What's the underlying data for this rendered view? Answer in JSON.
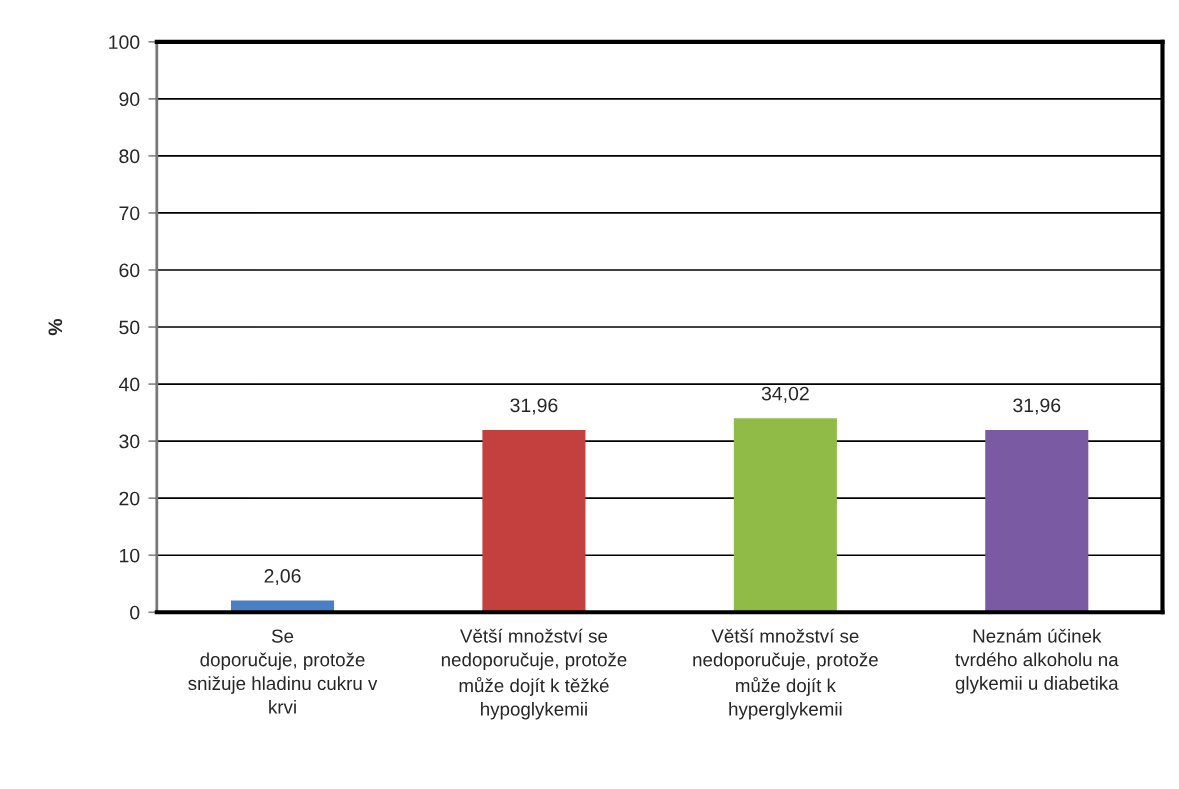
{
  "chart_data": {
    "type": "bar",
    "ylabel": "%",
    "categories": [
      "Se\ndoporučuje, protože\nsnižuje hladinu cukru v\nkrvi",
      "Větší množství se\nnedoporučuje, protože\nmůže dojít k těžké\nhypoglykemii",
      "Větší množství se\nnedoporučuje, protože\nmůže dojít k\nhyperglykemii",
      "Neznám účinek\ntvrdého alkoholu na\nglykemii u diabetika"
    ],
    "values": [
      2.06,
      31.96,
      34.02,
      31.96
    ],
    "value_labels": [
      "2,06",
      "31,96",
      "34,02",
      "31,96"
    ],
    "colors": [
      "#4a7fc4",
      "#c4403e",
      "#90bb46",
      "#7a5aa2"
    ],
    "ylim": [
      0,
      100
    ],
    "yticks": [
      0,
      10,
      20,
      30,
      40,
      50,
      60,
      70,
      80,
      90,
      100
    ],
    "grid": "y",
    "legend": false
  }
}
